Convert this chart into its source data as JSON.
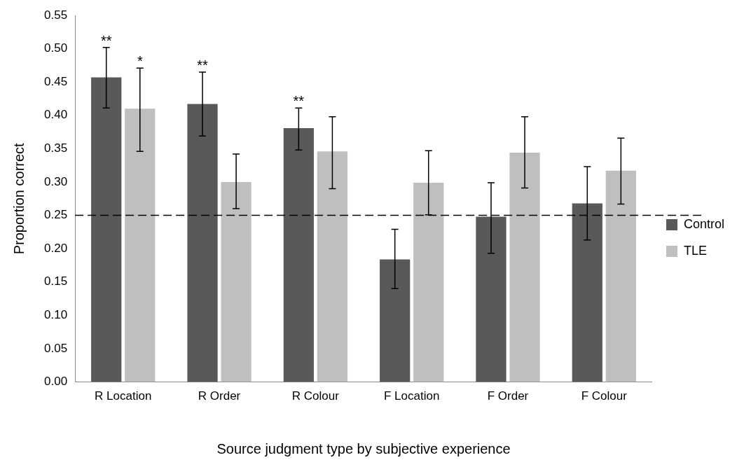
{
  "chart_data": {
    "type": "bar",
    "xlabel": "Source judgment type by subjective experience",
    "ylabel": "Proportion correct",
    "categories": [
      "R Location",
      "R Order",
      "R Colour",
      "F Location",
      "F Order",
      "F Colour"
    ],
    "series": [
      {
        "name": "Control",
        "color": "#595959",
        "values": [
          0.457,
          0.417,
          0.381,
          0.184,
          0.248,
          0.268
        ],
        "value_labels": [
          "**",
          "**",
          "**",
          null,
          null,
          null
        ],
        "errors": [
          [
            0.411,
            0.502
          ],
          [
            0.369,
            0.465
          ],
          [
            0.348,
            0.411
          ],
          [
            0.14,
            0.229
          ],
          [
            0.193,
            0.299
          ],
          [
            0.213,
            0.323
          ]
        ]
      },
      {
        "name": "TLE",
        "color": "#bfbfbf",
        "values": [
          0.41,
          0.3,
          0.346,
          0.299,
          0.344,
          0.317
        ],
        "value_labels": [
          "*",
          null,
          null,
          null,
          null,
          null
        ],
        "errors": [
          [
            0.346,
            0.471
          ],
          [
            0.26,
            0.342
          ],
          [
            0.29,
            0.398
          ],
          [
            0.251,
            0.347
          ],
          [
            0.291,
            0.398
          ],
          [
            0.267,
            0.366
          ]
        ]
      }
    ],
    "ylim": [
      0,
      0.55
    ],
    "yticks": [
      {
        "value": 0,
        "label": "0.00"
      },
      {
        "value": 0.05,
        "label": "0.05"
      },
      {
        "value": 0.1,
        "label": "0.10"
      },
      {
        "value": 0.15,
        "label": "0.15"
      },
      {
        "value": 0.2,
        "label": "0.20"
      },
      {
        "value": 0.25,
        "label": "0.25"
      },
      {
        "value": 0.3,
        "label": "0.30"
      },
      {
        "value": 0.35,
        "label": "0.35"
      },
      {
        "value": 0.4,
        "label": "0.40"
      },
      {
        "value": 0.45,
        "label": "0.45"
      },
      {
        "value": 0.5,
        "label": "0.50"
      },
      {
        "value": 0.55,
        "label": "0.55"
      }
    ],
    "ref_lines": [
      {
        "axis": "y",
        "value": 0.25,
        "color": "#000000",
        "line_style": "dashed"
      }
    ],
    "grid": false,
    "legend": "right"
  }
}
